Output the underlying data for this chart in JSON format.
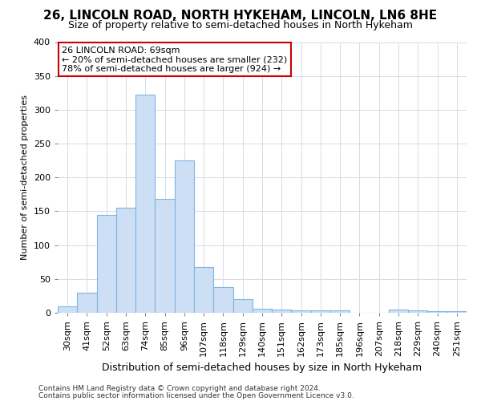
{
  "title1": "26, LINCOLN ROAD, NORTH HYKEHAM, LINCOLN, LN6 8HE",
  "title2": "Size of property relative to semi-detached houses in North Hykeham",
  "xlabel": "Distribution of semi-detached houses by size in North Hykeham",
  "ylabel": "Number of semi-detached properties",
  "footer1": "Contains HM Land Registry data © Crown copyright and database right 2024.",
  "footer2": "Contains public sector information licensed under the Open Government Licence v3.0.",
  "annotation_title": "26 LINCOLN ROAD: 69sqm",
  "annotation_line1": "← 20% of semi-detached houses are smaller (232)",
  "annotation_line2": "78% of semi-detached houses are larger (924) →",
  "bar_labels": [
    "30sqm",
    "41sqm",
    "52sqm",
    "63sqm",
    "74sqm",
    "85sqm",
    "96sqm",
    "107sqm",
    "118sqm",
    "129sqm",
    "140sqm",
    "151sqm",
    "162sqm",
    "173sqm",
    "185sqm",
    "196sqm",
    "207sqm",
    "218sqm",
    "229sqm",
    "240sqm",
    "251sqm"
  ],
  "bar_values": [
    10,
    30,
    145,
    155,
    322,
    168,
    225,
    68,
    38,
    20,
    6,
    5,
    3,
    4,
    3,
    0,
    0,
    5,
    3,
    2,
    2
  ],
  "bar_color": "#ccdff5",
  "bar_edgecolor": "#7fb5e0",
  "grid_color": "#d4dce8",
  "background_color": "#ffffff",
  "annotation_box_color": "#ffffff",
  "annotation_box_edgecolor": "#cc0000",
  "ylim": [
    0,
    400
  ],
  "yticks": [
    0,
    50,
    100,
    150,
    200,
    250,
    300,
    350,
    400
  ],
  "title1_fontsize": 11,
  "title2_fontsize": 9,
  "xlabel_fontsize": 9,
  "ylabel_fontsize": 8,
  "tick_fontsize": 8,
  "annotation_fontsize": 8,
  "footer_fontsize": 6.5
}
